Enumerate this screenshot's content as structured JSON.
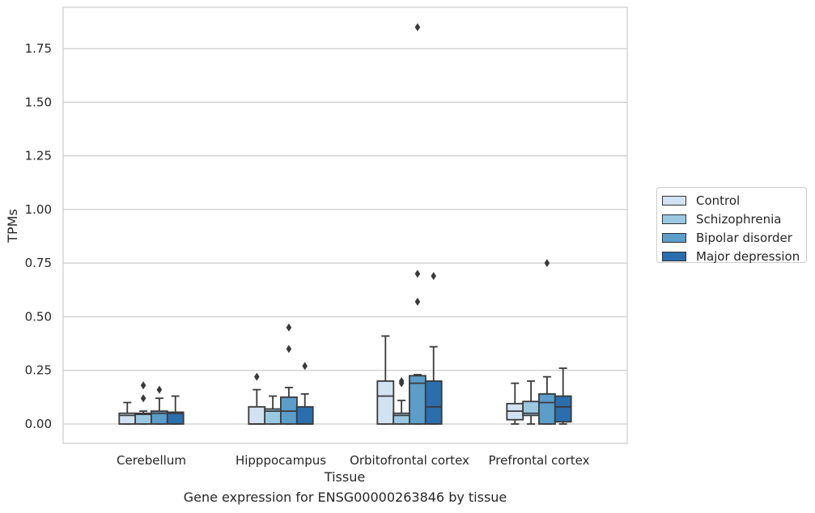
{
  "chart_data": {
    "type": "box",
    "xlabel": "Tissue",
    "ylabel": "TPMs",
    "caption": "Gene expression for ENSG00000263846 by tissue",
    "ylim": [
      -0.09,
      1.95
    ],
    "yticks": [
      "0.00",
      "0.25",
      "0.50",
      "0.75",
      "1.00",
      "1.25",
      "1.50",
      "1.75"
    ],
    "yticks_values": [
      0,
      0.25,
      0.5,
      0.75,
      1.0,
      1.25,
      1.5,
      1.75
    ],
    "grid": "horizontal",
    "legend_position": "outside-right",
    "categories": [
      "Cerebellum",
      "Hipppocampus",
      "Orbitofrontal cortex",
      "Prefrontal cortex"
    ],
    "series": [
      {
        "name": "Control",
        "color": "#d1e2f2",
        "boxes": [
          {
            "min": 0,
            "q1": 0,
            "median": 0.04,
            "q3": 0.05,
            "max": 0.1,
            "outliers": []
          },
          {
            "min": 0,
            "q1": 0,
            "median": 0,
            "q3": 0.08,
            "max": 0.16,
            "outliers": [
              0.22
            ]
          },
          {
            "min": 0,
            "q1": 0,
            "median": 0.13,
            "q3": 0.2,
            "max": 0.41,
            "outliers": []
          },
          {
            "min": 0,
            "q1": 0.02,
            "median": 0.06,
            "q3": 0.095,
            "max": 0.19,
            "outliers": []
          }
        ]
      },
      {
        "name": "Schizophrenia",
        "color": "#9ac8e0",
        "boxes": [
          {
            "min": 0,
            "q1": 0,
            "median": 0.045,
            "q3": 0.05,
            "max": 0.06,
            "outliers": [
              0.12,
              0.18
            ]
          },
          {
            "min": 0,
            "q1": 0,
            "median": 0.06,
            "q3": 0.07,
            "max": 0.13,
            "outliers": []
          },
          {
            "min": 0,
            "q1": 0,
            "median": 0.04,
            "q3": 0.05,
            "max": 0.11,
            "outliers": [
              0.19,
              0.2
            ]
          },
          {
            "min": 0,
            "q1": 0.04,
            "median": 0.05,
            "q3": 0.105,
            "max": 0.2,
            "outliers": []
          }
        ]
      },
      {
        "name": "Bipolar disorder",
        "color": "#5a9ec9",
        "boxes": [
          {
            "min": 0,
            "q1": 0,
            "median": 0.05,
            "q3": 0.06,
            "max": 0.12,
            "outliers": [
              0.16
            ]
          },
          {
            "min": 0,
            "q1": 0,
            "median": 0.06,
            "q3": 0.125,
            "max": 0.17,
            "outliers": [
              0.35,
              0.45
            ]
          },
          {
            "min": 0,
            "q1": 0,
            "median": 0.19,
            "q3": 0.225,
            "max": 0.23,
            "outliers": [
              0.57,
              0.7,
              1.85
            ]
          },
          {
            "min": 0,
            "q1": 0,
            "median": 0.1,
            "q3": 0.14,
            "max": 0.22,
            "outliers": [
              0.75
            ]
          }
        ]
      },
      {
        "name": "Major depression",
        "color": "#2a6eae",
        "boxes": [
          {
            "min": 0,
            "q1": 0,
            "median": 0.05,
            "q3": 0.055,
            "max": 0.13,
            "outliers": []
          },
          {
            "min": 0,
            "q1": 0,
            "median": 0,
            "q3": 0.08,
            "max": 0.14,
            "outliers": [
              0.27
            ]
          },
          {
            "min": 0,
            "q1": 0,
            "median": 0.08,
            "q3": 0.2,
            "max": 0.36,
            "outliers": [
              0.69
            ]
          },
          {
            "min": 0,
            "q1": 0.01,
            "median": 0.08,
            "q3": 0.13,
            "max": 0.26,
            "outliers": []
          }
        ]
      }
    ]
  }
}
